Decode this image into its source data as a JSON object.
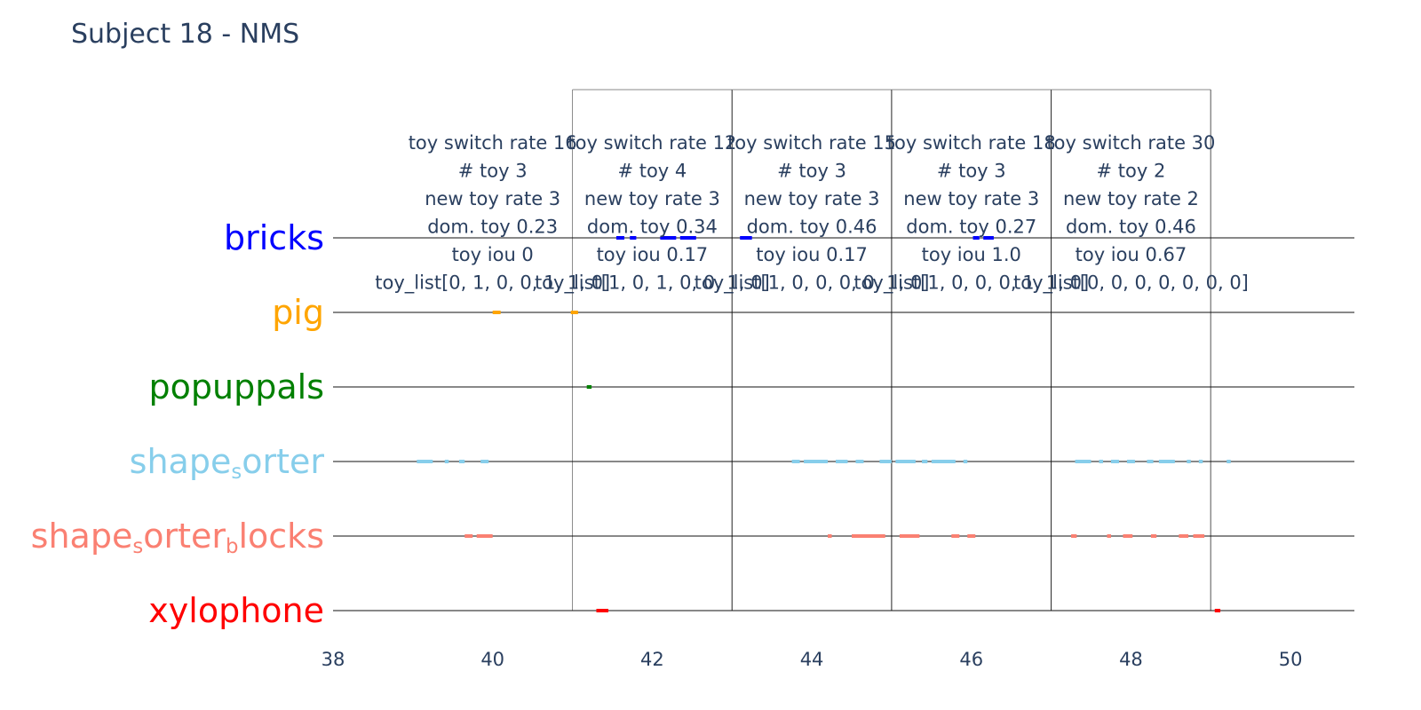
{
  "chart_data": {
    "type": "timeline",
    "title": "Subject 18 - NMS",
    "xlim": [
      38,
      50.8
    ],
    "xticks": [
      38,
      40,
      42,
      44,
      46,
      48,
      50
    ],
    "grid": false,
    "categories": [
      {
        "id": "bricks",
        "name": "bricks",
        "sub": [],
        "color": "#0000ff"
      },
      {
        "id": "pig",
        "name": "pig",
        "sub": [],
        "color": "#ffa500"
      },
      {
        "id": "popuppals",
        "name": "popuppals",
        "sub": [],
        "color": "#008000"
      },
      {
        "id": "shape_sorter",
        "name": "shape_sorter",
        "sub": [
          "shape",
          "s",
          "orter"
        ],
        "color": "#87ceeb"
      },
      {
        "id": "shape_sorter_blocks",
        "name": "shape_sorter_blocks",
        "sub": [
          "shape",
          "s",
          "orter",
          "b",
          "locks"
        ],
        "color": "#fa8072"
      },
      {
        "id": "xylophone",
        "name": "xylophone",
        "sub": [],
        "color": "#ff0000"
      }
    ],
    "segments": {
      "bricks": [
        [
          41.55,
          41.65
        ],
        [
          41.72,
          41.8
        ],
        [
          42.1,
          42.3
        ],
        [
          42.35,
          42.55
        ],
        [
          43.1,
          43.25
        ],
        [
          46.02,
          46.1
        ],
        [
          46.15,
          46.28
        ]
      ],
      "pig": [
        [
          40.0,
          40.1
        ],
        [
          40.98,
          41.07
        ]
      ],
      "popuppals": [
        [
          41.18,
          41.24
        ]
      ],
      "shape_sorter": [
        [
          39.05,
          39.25
        ],
        [
          39.4,
          39.45
        ],
        [
          39.58,
          39.65
        ],
        [
          39.85,
          39.95
        ],
        [
          43.75,
          43.85
        ],
        [
          43.9,
          44.2
        ],
        [
          44.3,
          44.45
        ],
        [
          44.55,
          44.65
        ],
        [
          44.85,
          45.0
        ],
        [
          45.05,
          45.3
        ],
        [
          45.38,
          45.45
        ],
        [
          45.5,
          45.8
        ],
        [
          45.9,
          45.95
        ],
        [
          47.3,
          47.5
        ],
        [
          47.6,
          47.65
        ],
        [
          47.75,
          47.85
        ],
        [
          47.95,
          48.05
        ],
        [
          48.2,
          48.28
        ],
        [
          48.35,
          48.55
        ],
        [
          48.7,
          48.75
        ],
        [
          48.85,
          48.9
        ],
        [
          49.2,
          49.25
        ]
      ],
      "shape_sorter_blocks": [
        [
          39.65,
          39.75
        ],
        [
          39.8,
          40.0
        ],
        [
          44.2,
          44.25
        ],
        [
          44.5,
          44.92
        ],
        [
          45.1,
          45.35
        ],
        [
          45.75,
          45.85
        ],
        [
          45.95,
          46.05
        ],
        [
          47.25,
          47.32
        ],
        [
          47.7,
          47.75
        ],
        [
          47.9,
          48.02
        ],
        [
          48.25,
          48.32
        ],
        [
          48.6,
          48.72
        ],
        [
          48.78,
          48.92
        ]
      ],
      "xylophone": [
        [
          41.3,
          41.45
        ],
        [
          49.05,
          49.12
        ]
      ]
    },
    "windows": [
      {
        "x": 40.0,
        "x_start": 41.0,
        "x_end": 43.0,
        "lines": [
          "toy switch rate 16",
          "# toy 3",
          "new toy rate 3",
          "dom. toy 0.23",
          "toy iou 0",
          "toy_list[0, 1, 0, 0, 1, 1, 0]"
        ]
      },
      {
        "x": 42.0,
        "x_start": 43.0,
        "x_end": 45.0,
        "lines": [
          "toy switch rate 12",
          "# toy 4",
          "new toy rate 3",
          "dom. toy 0.34",
          "toy iou 0.17",
          "toy_list[1, 0, 1, 0, 0, 1, 0]"
        ]
      },
      {
        "x": 44.0,
        "x_start": 45.0,
        "x_end": 47.0,
        "lines": [
          "toy switch rate 15",
          "# toy 3",
          "new toy rate 3",
          "dom. toy 0.46",
          "toy iou 0.17",
          "toy_list[1, 0, 0, 0, 0, 1, 0]"
        ]
      },
      {
        "x": 46.0,
        "x_start": 47.0,
        "x_end": 49.0,
        "lines": [
          "toy switch rate 18",
          "# toy 3",
          "new toy rate 3",
          "dom. toy 0.27",
          "toy iou 1.0",
          "toy_list[1, 0, 0, 0, 1, 1, 0]"
        ]
      },
      {
        "x": 48.0,
        "x_start": 49.0,
        "x_end": 49.0,
        "lines": [
          "toy switch rate 30",
          "# toy 2",
          "new toy rate 2",
          "dom. toy 0.46",
          "toy iou 0.67",
          "toy_list[0, 0, 0, 0, 0, 0, 0]"
        ]
      }
    ]
  }
}
